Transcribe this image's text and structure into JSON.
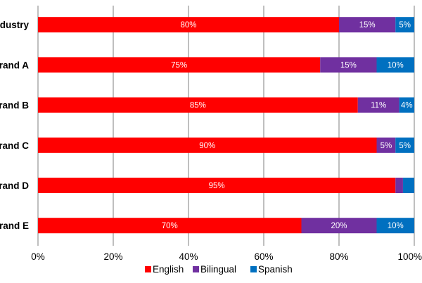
{
  "chart_data": {
    "type": "bar",
    "orientation": "horizontal",
    "stacked": true,
    "categories": [
      "Industry",
      "Brand A",
      "Brand B",
      "Brand C",
      "Brand D",
      "Brand E"
    ],
    "visible_category_labels": [
      "dustry",
      "rand A",
      "rand B",
      "rand C",
      "rand D",
      "rand E"
    ],
    "series": [
      {
        "name": "English",
        "color": "#ff0000",
        "values": [
          80,
          75,
          85,
          90,
          95,
          70
        ],
        "labels": [
          "80%",
          "75%",
          "85%",
          "90%",
          "95%",
          "70%"
        ]
      },
      {
        "name": "Bilingual",
        "color": "#7030a0",
        "values": [
          15,
          15,
          11,
          5,
          2,
          20
        ],
        "labels": [
          "15%",
          "15%",
          "11%",
          "5%",
          "",
          "20%"
        ]
      },
      {
        "name": "Spanish",
        "color": "#0070c0",
        "values": [
          5,
          10,
          4,
          5,
          3,
          10
        ],
        "labels": [
          "5%",
          "10%",
          "4%",
          "5%",
          "",
          "10%"
        ]
      }
    ],
    "xlim": [
      0,
      100
    ],
    "x_ticks": [
      0,
      20,
      40,
      60,
      80,
      100
    ],
    "x_tick_labels": [
      "0%",
      "20%",
      "40%",
      "60%",
      "80%",
      "100%"
    ],
    "grid": "vertical",
    "legend": "bottom",
    "title": "",
    "xlabel": "",
    "ylabel": ""
  }
}
